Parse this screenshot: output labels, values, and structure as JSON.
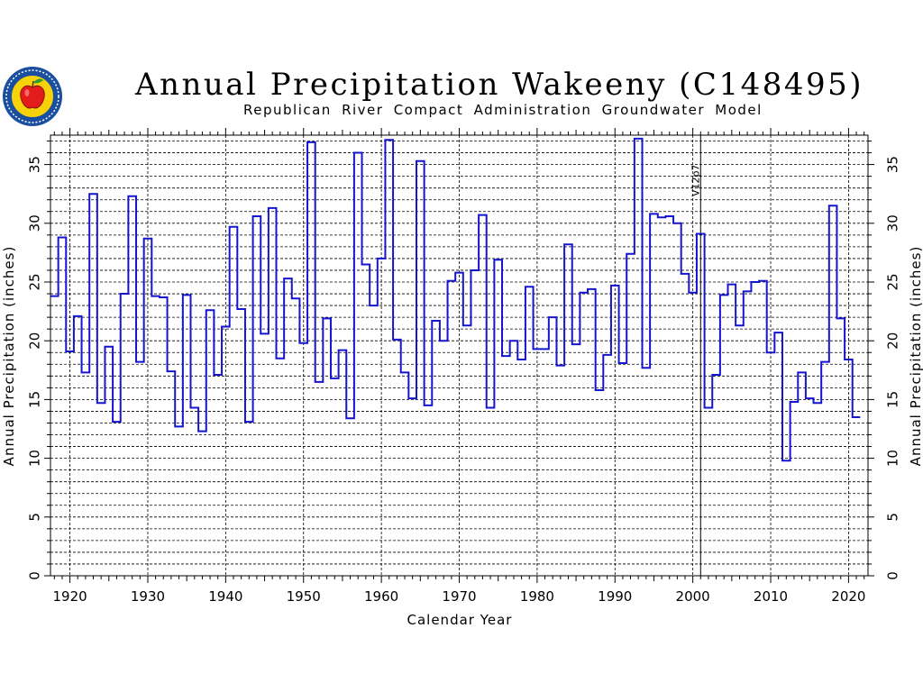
{
  "header": {
    "title": "Annual Precipitation Wakeeny (C148495)",
    "subtitle": "Republican River Compact Administration Groundwater Model"
  },
  "logo": {
    "icon": "apple-seal-logo-icon",
    "colors": {
      "ring": "#1a4fa0",
      "fill": "#f5d20a",
      "apple": "#e31b1b",
      "leaf": "#2e9c2e"
    }
  },
  "colors": {
    "series": "#1515d0",
    "grid": "#000000",
    "background": "#ffffff"
  },
  "chart_data": {
    "type": "line",
    "step": true,
    "title": "Annual Precipitation Wakeeny (C148495)",
    "subtitle": "Republican River Compact Administration Groundwater Model",
    "xlabel": "Calendar Year",
    "ylabel": "Annual Precipitation (inches)",
    "ylabel_right": "Annual Precipitation (inches)",
    "xlim": [
      1917.5,
      2022.5
    ],
    "ylim": [
      0,
      37.5
    ],
    "xticks": [
      "1920",
      "1930",
      "1940",
      "1950",
      "1960",
      "1970",
      "1980",
      "1990",
      "2000",
      "2010",
      "2020"
    ],
    "yticks": [
      "0",
      "5",
      "10",
      "15",
      "20",
      "25",
      "30",
      "35"
    ],
    "grid": true,
    "annotation": {
      "text": "V12p7",
      "x": 2001
    },
    "series": [
      {
        "x": [
          1918,
          1919,
          1920,
          1921,
          1922,
          1923,
          1924,
          1925,
          1926,
          1927,
          1928,
          1929,
          1930,
          1931,
          1932,
          1933,
          1934,
          1935,
          1936,
          1937,
          1938,
          1939,
          1940,
          1941,
          1942,
          1943,
          1944,
          1945,
          1946,
          1947,
          1948,
          1949,
          1950,
          1951,
          1952,
          1953,
          1954,
          1955,
          1956,
          1957,
          1958,
          1959,
          1960,
          1961,
          1962,
          1963,
          1964,
          1965,
          1966,
          1967,
          1968,
          1969,
          1970,
          1971,
          1972,
          1973,
          1974,
          1975,
          1976,
          1977,
          1978,
          1979,
          1980,
          1981,
          1982,
          1983,
          1984,
          1985,
          1986,
          1987,
          1988,
          1989,
          1990,
          1991,
          1992,
          1993,
          1994,
          1995,
          1996,
          1997,
          1998,
          1999,
          2000,
          2001,
          2002,
          2003,
          2004,
          2005,
          2006,
          2007,
          2008,
          2009,
          2010,
          2011,
          2012,
          2013,
          2014,
          2015,
          2016,
          2017,
          2018,
          2019,
          2020,
          2021
        ],
        "values": [
          23.8,
          28.8,
          19.1,
          22.1,
          17.3,
          32.5,
          14.7,
          19.5,
          13.1,
          24.0,
          32.3,
          18.2,
          28.7,
          23.8,
          23.7,
          17.4,
          12.7,
          23.9,
          14.3,
          12.3,
          22.6,
          17.1,
          21.2,
          29.7,
          22.7,
          13.1,
          30.6,
          20.6,
          31.3,
          18.5,
          25.3,
          23.6,
          19.8,
          36.9,
          16.5,
          21.9,
          16.8,
          19.2,
          13.4,
          36.0,
          26.5,
          23.0,
          27.0,
          37.1,
          20.1,
          17.3,
          15.1,
          35.3,
          14.5,
          21.7,
          20.0,
          25.1,
          25.8,
          21.3,
          26.0,
          30.7,
          14.3,
          26.9,
          18.7,
          20.0,
          18.4,
          24.6,
          19.3,
          19.3,
          22.0,
          17.9,
          28.2,
          19.7,
          24.1,
          24.4,
          15.8,
          18.8,
          24.7,
          18.1,
          27.4,
          37.2,
          17.7,
          30.8,
          30.5,
          30.6,
          30.0,
          25.7,
          24.1,
          29.1,
          14.3,
          17.1,
          23.9,
          24.8,
          21.3,
          24.2,
          25.0,
          25.1,
          19.0,
          20.7,
          9.8,
          14.8,
          17.3,
          15.1,
          14.7,
          18.2,
          31.5,
          21.9,
          18.4,
          13.5
        ]
      }
    ]
  }
}
